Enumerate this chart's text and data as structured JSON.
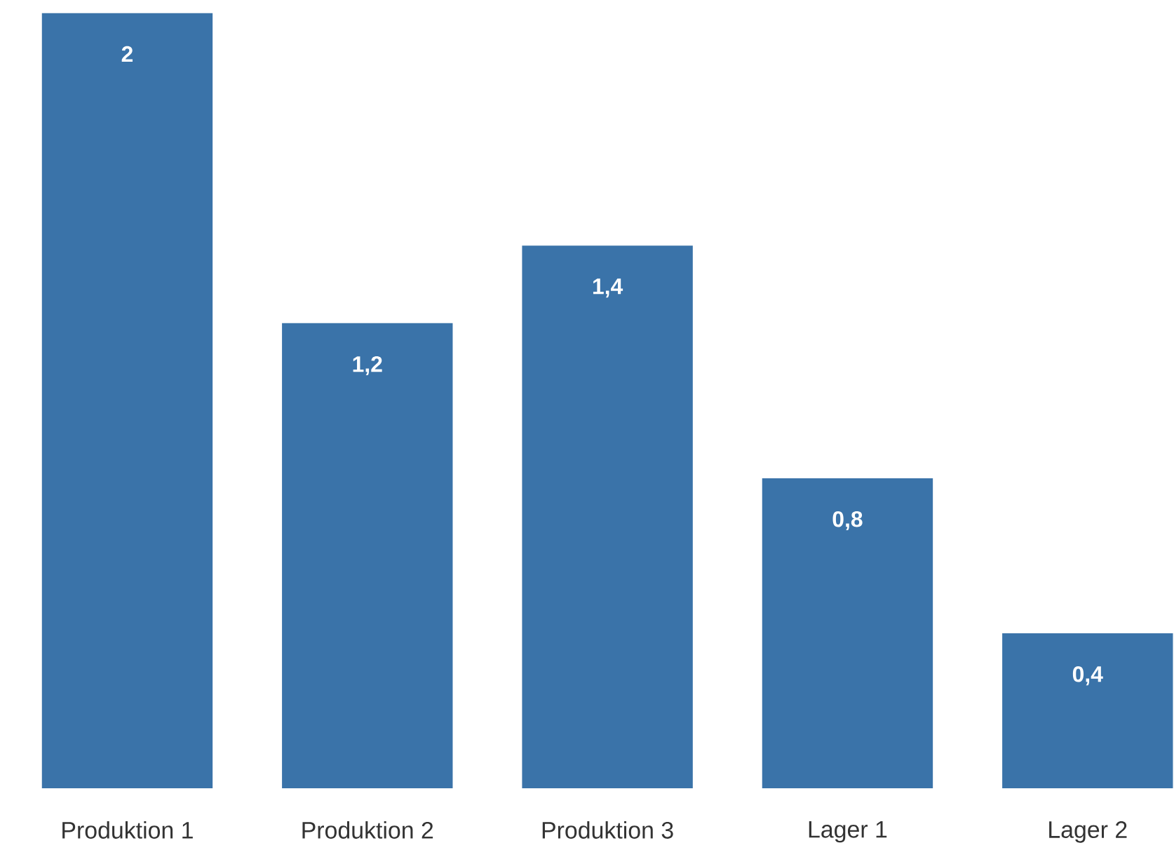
{
  "chart_data": {
    "type": "bar",
    "categories": [
      "Produktion 1",
      "Produktion 2",
      "Produktion 3",
      "Lager 1",
      "Lager 2"
    ],
    "values": [
      2,
      1.2,
      1.4,
      0.8,
      0.4
    ],
    "value_labels": [
      "2",
      "1,2",
      "1,4",
      "0,8",
      "0,4"
    ],
    "color": "#3a73a9"
  }
}
